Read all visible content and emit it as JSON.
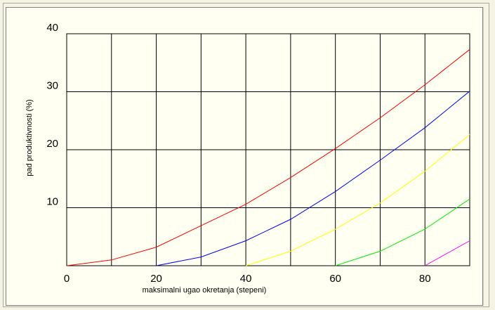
{
  "chart_data": {
    "type": "line",
    "title": "",
    "xlabel": "maksimalni ugao okretanja (stepeni)",
    "ylabel": "pad produktivnosti (%)",
    "xlim": [
      0,
      90
    ],
    "ylim": [
      0,
      40
    ],
    "x_ticks": [
      "0",
      "20",
      "40",
      "60",
      "80"
    ],
    "x_tick_values": [
      0,
      20,
      40,
      60,
      80
    ],
    "y_ticks": [
      "10",
      "20",
      "30",
      "40"
    ],
    "y_tick_values": [
      10,
      20,
      30,
      40
    ],
    "grid": true,
    "legend": "none",
    "series": [
      {
        "color": "#ff0000",
        "points": [
          [
            0,
            0
          ],
          [
            10,
            1
          ],
          [
            20,
            3.2
          ],
          [
            30,
            6.9
          ],
          [
            40,
            10.6
          ],
          [
            50,
            15.2
          ],
          [
            60,
            20.2
          ],
          [
            70,
            25.5
          ],
          [
            80,
            31.2
          ],
          [
            90,
            37.3
          ]
        ]
      },
      {
        "color": "#0000ff",
        "points": [
          [
            20,
            0
          ],
          [
            30,
            1.5
          ],
          [
            40,
            4.3
          ],
          [
            50,
            8
          ],
          [
            60,
            12.8
          ],
          [
            70,
            18.2
          ],
          [
            80,
            23.8
          ],
          [
            90,
            30.1
          ]
        ]
      },
      {
        "color": "#ffff00",
        "points": [
          [
            40,
            0
          ],
          [
            50,
            2.5
          ],
          [
            60,
            6.3
          ],
          [
            70,
            10.8
          ],
          [
            80,
            16.3
          ],
          [
            90,
            22.6
          ]
        ]
      },
      {
        "color": "#00ee00",
        "points": [
          [
            60,
            0
          ],
          [
            70,
            2.5
          ],
          [
            80,
            6.3
          ],
          [
            90,
            11.5
          ]
        ]
      },
      {
        "color": "#ff00ff",
        "points": [
          [
            80,
            0
          ],
          [
            90,
            4.3
          ]
        ]
      }
    ]
  }
}
